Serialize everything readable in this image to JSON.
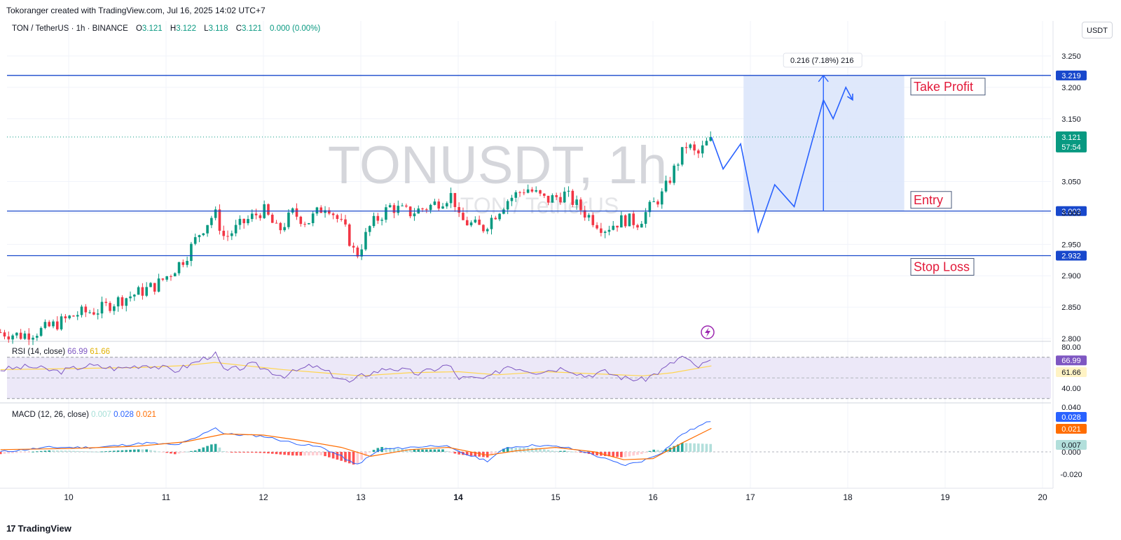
{
  "header": {
    "credit": "Tokoranger created with TradingView.com, Jul 16, 2025 14:02 UTC+7"
  },
  "symbol_bar": {
    "title": "TON / TetherUS · 1h · BINANCE",
    "o_label": "O",
    "o_value": "3.121",
    "h_label": "H",
    "h_value": "3.122",
    "l_label": "L",
    "l_value": "3.118",
    "c_label": "C",
    "c_value": "3.121",
    "change": "0.000 (0.00%)"
  },
  "currency": "USDT",
  "watermark": {
    "main": "TONUSDT, 1h",
    "sub": "TON / TetherUS"
  },
  "rsi_label": {
    "name": "RSI (14, close)",
    "v1": "66.99",
    "v2": "61.66"
  },
  "macd_label": {
    "name": "MACD (12, 26, close)",
    "v1": "0.007",
    "v2": "0.028",
    "v3": "0.021"
  },
  "footer": {
    "brand": "TradingView",
    "glyph": "17"
  },
  "colors": {
    "up": "#089981",
    "down": "#f23645",
    "level_line": "#1848cc",
    "projection": "#2962ff",
    "target_zone": "#dbe5fb",
    "rsi_line": "#7e57c2",
    "rsi_ma": "#ffd54f",
    "macd_line": "#2962ff",
    "signal_line": "#ff6d00",
    "rsi_band": "#ece8f8",
    "label_red": "#e21a3a"
  },
  "chart_data": [
    {
      "type": "candlestick",
      "title": "TONUSDT, 1h",
      "x_ticks": [
        "10",
        "11",
        "12",
        "13",
        "14",
        "15",
        "16",
        "17",
        "18",
        "19",
        "20"
      ],
      "y_ticks": [
        "3.250",
        "3.200",
        "3.150",
        "3.050",
        "3.000",
        "2.950",
        "2.900",
        "2.850",
        "2.800"
      ],
      "ylim": [
        2.79,
        3.27
      ],
      "last_price": "3.121",
      "countdown": "57:54",
      "levels": [
        {
          "name": "Take Profit",
          "price": 3.219,
          "label": "3.219"
        },
        {
          "name": "Entry",
          "price": 3.003,
          "label": "3.003"
        },
        {
          "name": "Stop Loss",
          "price": 2.932,
          "label": "2.932"
        }
      ],
      "measure_label": "0.216 (7.18%) 216",
      "close_path": [
        [
          9.3,
          2.81
        ],
        [
          9.5,
          2.805
        ],
        [
          9.7,
          2.812
        ],
        [
          9.9,
          2.825
        ],
        [
          10.1,
          2.84
        ],
        [
          10.3,
          2.845
        ],
        [
          10.5,
          2.86
        ],
        [
          10.7,
          2.872
        ],
        [
          10.9,
          2.885
        ],
        [
          11.05,
          2.905
        ],
        [
          11.2,
          2.93
        ],
        [
          11.35,
          2.97
        ],
        [
          11.5,
          3.0
        ],
        [
          11.6,
          2.96
        ],
        [
          11.8,
          2.985
        ],
        [
          12.0,
          3.005
        ],
        [
          12.15,
          2.97
        ],
        [
          12.3,
          3.0
        ],
        [
          12.45,
          2.985
        ],
        [
          12.65,
          3.015
        ],
        [
          12.85,
          2.97
        ],
        [
          12.95,
          2.93
        ],
        [
          13.1,
          2.98
        ],
        [
          13.3,
          3.01
        ],
        [
          13.5,
          3.0
        ],
        [
          13.7,
          3.01
        ],
        [
          13.95,
          3.03
        ],
        [
          14.0,
          2.99
        ],
        [
          14.25,
          2.975
        ],
        [
          14.5,
          3.02
        ],
        [
          14.7,
          3.04
        ],
        [
          14.9,
          3.02
        ],
        [
          15.1,
          3.03
        ],
        [
          15.3,
          3.0
        ],
        [
          15.5,
          2.975
        ],
        [
          15.7,
          2.99
        ],
        [
          15.85,
          2.985
        ],
        [
          15.95,
          3.005
        ],
        [
          16.1,
          3.03
        ],
        [
          16.25,
          3.08
        ],
        [
          16.35,
          3.11
        ],
        [
          16.45,
          3.09
        ],
        [
          16.6,
          3.121
        ]
      ],
      "projection": [
        [
          16.6,
          3.121
        ],
        [
          16.72,
          3.07
        ],
        [
          16.9,
          3.11
        ],
        [
          17.08,
          2.97
        ],
        [
          17.25,
          3.045
        ],
        [
          17.45,
          3.01
        ],
        [
          17.75,
          3.18
        ],
        [
          17.85,
          3.15
        ],
        [
          17.98,
          3.2
        ],
        [
          18.05,
          3.18
        ]
      ]
    },
    {
      "type": "line",
      "title": "RSI (14, close)",
      "y_ticks": [
        "80.00",
        "40.00"
      ],
      "ylim": [
        28,
        82
      ],
      "bands": [
        70,
        30
      ],
      "midline": 50,
      "last_values": [
        "66.99",
        "61.66"
      ],
      "rsi": [
        [
          9.3,
          58
        ],
        [
          9.6,
          61
        ],
        [
          9.9,
          56
        ],
        [
          10.2,
          62
        ],
        [
          10.5,
          59
        ],
        [
          10.8,
          63
        ],
        [
          11.1,
          57
        ],
        [
          11.3,
          65
        ],
        [
          11.5,
          74
        ],
        [
          11.6,
          56
        ],
        [
          11.9,
          63
        ],
        [
          12.2,
          52
        ],
        [
          12.5,
          62
        ],
        [
          12.9,
          45
        ],
        [
          13.0,
          52
        ],
        [
          13.3,
          60
        ],
        [
          13.6,
          54
        ],
        [
          13.9,
          63
        ],
        [
          14.0,
          50
        ],
        [
          14.3,
          49
        ],
        [
          14.5,
          62
        ],
        [
          14.8,
          56
        ],
        [
          15.1,
          60
        ],
        [
          15.3,
          52
        ],
        [
          15.5,
          56
        ],
        [
          15.7,
          50
        ],
        [
          15.9,
          48
        ],
        [
          16.1,
          58
        ],
        [
          16.3,
          71
        ],
        [
          16.45,
          60
        ],
        [
          16.6,
          66.99
        ]
      ],
      "rsi_ma": [
        [
          9.3,
          58
        ],
        [
          10.0,
          59
        ],
        [
          10.7,
          60
        ],
        [
          11.2,
          62
        ],
        [
          11.5,
          65
        ],
        [
          11.8,
          62
        ],
        [
          12.2,
          58
        ],
        [
          12.6,
          55
        ],
        [
          13.0,
          52
        ],
        [
          13.5,
          55
        ],
        [
          14.0,
          56
        ],
        [
          14.4,
          53
        ],
        [
          14.9,
          56
        ],
        [
          15.4,
          54
        ],
        [
          15.9,
          52
        ],
        [
          16.2,
          55
        ],
        [
          16.6,
          61.66
        ]
      ]
    },
    {
      "type": "bar+line",
      "title": "MACD (12, 26, close)",
      "y_ticks": [
        "0.040",
        "0.000",
        "-0.020"
      ],
      "ylim": [
        -0.032,
        0.048
      ],
      "last_values": {
        "histogram": "0.007",
        "macd": "0.028",
        "signal": "0.021"
      },
      "macd": [
        [
          9.3,
          0.0
        ],
        [
          9.8,
          0.004
        ],
        [
          10.3,
          0.004
        ],
        [
          10.8,
          0.008
        ],
        [
          11.1,
          0.006
        ],
        [
          11.3,
          0.012
        ],
        [
          11.5,
          0.022
        ],
        [
          11.6,
          0.016
        ],
        [
          12.0,
          0.014
        ],
        [
          12.3,
          0.008
        ],
        [
          12.6,
          0.004
        ],
        [
          12.8,
          -0.004
        ],
        [
          12.95,
          -0.012
        ],
        [
          13.2,
          0.002
        ],
        [
          13.5,
          0.004
        ],
        [
          13.85,
          0.006
        ],
        [
          14.0,
          0.0
        ],
        [
          14.3,
          -0.008
        ],
        [
          14.5,
          0.004
        ],
        [
          14.8,
          0.006
        ],
        [
          15.1,
          0.004
        ],
        [
          15.3,
          0.0
        ],
        [
          15.5,
          -0.006
        ],
        [
          15.7,
          -0.012
        ],
        [
          15.9,
          -0.008
        ],
        [
          16.1,
          0.0
        ],
        [
          16.3,
          0.016
        ],
        [
          16.45,
          0.022
        ],
        [
          16.6,
          0.028
        ]
      ],
      "signal": [
        [
          9.3,
          0.002
        ],
        [
          10.0,
          0.003
        ],
        [
          10.7,
          0.005
        ],
        [
          11.2,
          0.009
        ],
        [
          11.6,
          0.016
        ],
        [
          12.0,
          0.015
        ],
        [
          12.4,
          0.01
        ],
        [
          12.8,
          0.004
        ],
        [
          13.1,
          -0.004
        ],
        [
          13.5,
          0.002
        ],
        [
          13.9,
          0.004
        ],
        [
          14.3,
          -0.003
        ],
        [
          14.6,
          0.001
        ],
        [
          15.0,
          0.004
        ],
        [
          15.4,
          0.0
        ],
        [
          15.7,
          -0.007
        ],
        [
          16.0,
          -0.006
        ],
        [
          16.3,
          0.008
        ],
        [
          16.6,
          0.021
        ]
      ]
    }
  ]
}
